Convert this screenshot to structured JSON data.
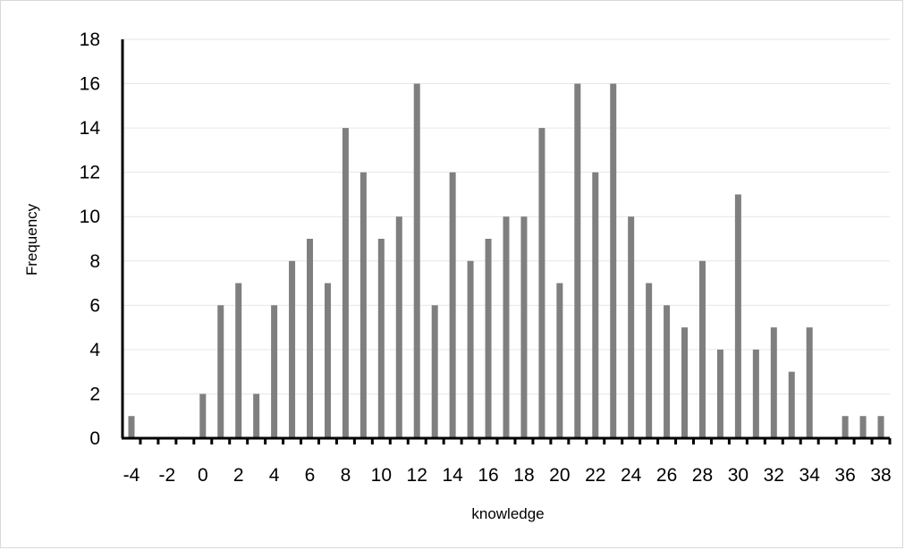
{
  "chart_data": {
    "type": "bar",
    "xlabel": "knowledge",
    "ylabel": "Frequency",
    "ylim": [
      0,
      18
    ],
    "yticks": [
      0,
      2,
      4,
      6,
      8,
      10,
      12,
      14,
      16,
      18
    ],
    "xticks": [
      -4,
      -2,
      0,
      2,
      4,
      6,
      8,
      10,
      12,
      14,
      16,
      18,
      20,
      22,
      24,
      26,
      28,
      30,
      32,
      34,
      36,
      38
    ],
    "grid": true,
    "legend": "none",
    "categories": [
      -4,
      -3,
      -2,
      -1,
      0,
      1,
      2,
      3,
      4,
      5,
      6,
      7,
      8,
      9,
      10,
      11,
      12,
      13,
      14,
      15,
      16,
      17,
      18,
      19,
      20,
      21,
      22,
      23,
      24,
      25,
      26,
      27,
      28,
      29,
      30,
      31,
      32,
      33,
      34,
      35,
      36,
      37,
      38
    ],
    "values": [
      1,
      0,
      0,
      0,
      2,
      6,
      7,
      2,
      6,
      8,
      9,
      7,
      14,
      12,
      9,
      10,
      16,
      6,
      12,
      8,
      9,
      10,
      10,
      14,
      7,
      16,
      12,
      16,
      10,
      7,
      6,
      5,
      8,
      4,
      11,
      4,
      5,
      3,
      5,
      0,
      1,
      1,
      1
    ],
    "colors": {
      "bar": "#7f7f7f",
      "axis": "#000000",
      "grid": "#e6e6e6"
    }
  }
}
